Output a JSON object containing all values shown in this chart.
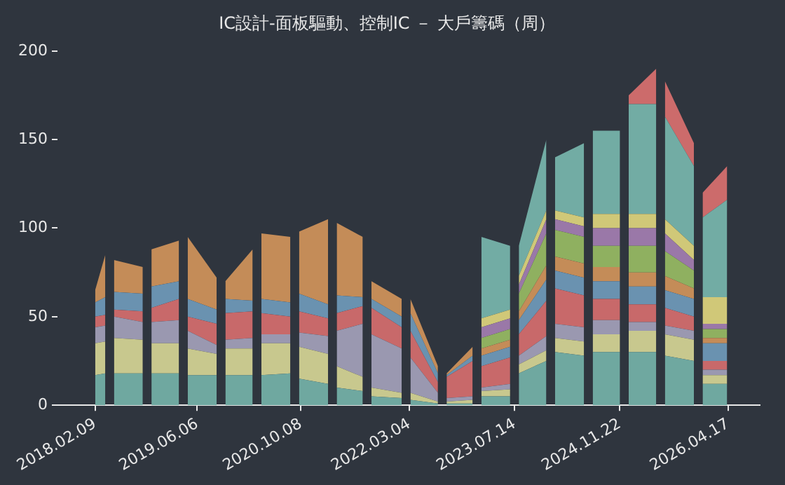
{
  "chart_data": {
    "type": "area",
    "title": "IC設計-面板驅動、控制IC － 大戶籌碼（周）",
    "stacked": true,
    "grid": false,
    "legend": false,
    "x": [
      "2018-02-09",
      "2018-03-29",
      "2018-04-18",
      "2018-05-09",
      "2018-09-22",
      "2018-10-13",
      "2018-11-02",
      "2019-03-12",
      "2019-04-02",
      "2019-04-22",
      "2019-09-06",
      "2019-09-26",
      "2019-10-17",
      "2020-02-23",
      "2020-03-15",
      "2020-04-04",
      "2020-08-19",
      "2020-09-09",
      "2020-09-29",
      "2021-02-13",
      "2021-03-05",
      "2021-03-26",
      "2021-07-27",
      "2021-08-16",
      "2021-09-06",
      "2022-01-27",
      "2022-02-16",
      "2022-03-09",
      "2022-07-17",
      "2022-08-06",
      "2022-08-27",
      "2022-12-28",
      "2023-01-17",
      "2023-02-07",
      "2023-06-23",
      "2023-07-14",
      "2023-08-03",
      "2023-12-11",
      "2023-12-31",
      "2024-01-21",
      "2024-06-06",
      "2024-06-26",
      "2024-07-17",
      "2024-11-23",
      "2024-12-14",
      "2025-01-03",
      "2025-05-13",
      "2025-06-02",
      "2025-06-23",
      "2025-11-07",
      "2025-11-27",
      "2025-12-18",
      "2026-04-13"
    ],
    "xlim": [
      "2017-08-15",
      "2026-09-14"
    ],
    "xticks": [
      {
        "value": "2018-02-09",
        "label": "2018.02.09"
      },
      {
        "value": "2019-06-06",
        "label": "2019.06.06"
      },
      {
        "value": "2020-10-08",
        "label": "2020.10.08"
      },
      {
        "value": "2022-03-04",
        "label": "2022.03.04"
      },
      {
        "value": "2023-07-14",
        "label": "2023.07.14"
      },
      {
        "value": "2024-11-22",
        "label": "2024.11.22"
      },
      {
        "value": "2026-04-17",
        "label": "2026.04.17"
      }
    ],
    "ylim": [
      0,
      200
    ],
    "yticks": [
      0,
      50,
      100,
      150,
      200
    ],
    "series": [
      {
        "color": "#6fa8a0",
        "values": [
          17,
          18,
          null,
          18,
          18,
          null,
          18,
          18,
          null,
          17,
          17,
          null,
          17,
          17,
          null,
          17,
          18,
          null,
          15,
          12,
          null,
          10,
          8,
          null,
          5,
          4,
          null,
          3,
          1,
          null,
          1,
          1,
          null,
          5,
          5,
          null,
          18,
          25,
          null,
          30,
          28,
          null,
          30,
          30,
          null,
          30,
          30,
          null,
          28,
          25,
          null,
          12,
          12
        ]
      },
      {
        "color": "#c8c88e",
        "values": [
          18,
          18,
          null,
          20,
          19,
          null,
          17,
          17,
          null,
          15,
          12,
          null,
          15,
          15,
          null,
          18,
          17,
          null,
          18,
          17,
          null,
          12,
          8,
          null,
          5,
          3,
          null,
          4,
          1,
          null,
          1,
          2,
          null,
          3,
          4,
          null,
          5,
          6,
          null,
          8,
          8,
          null,
          10,
          10,
          null,
          12,
          12,
          null,
          12,
          12,
          null,
          5,
          5
        ]
      },
      {
        "color": "#9a98b0",
        "values": [
          9,
          9,
          null,
          12,
          10,
          null,
          12,
          13,
          null,
          10,
          5,
          null,
          5,
          6,
          null,
          5,
          5,
          null,
          8,
          10,
          null,
          20,
          30,
          null,
          30,
          25,
          null,
          20,
          5,
          null,
          2,
          2,
          null,
          2,
          3,
          null,
          5,
          8,
          null,
          8,
          8,
          null,
          8,
          8,
          null,
          5,
          5,
          null,
          5,
          5,
          null,
          3,
          3
        ]
      },
      {
        "color": "#c8696a",
        "values": [
          6,
          6,
          null,
          4,
          6,
          null,
          8,
          12,
          null,
          8,
          12,
          null,
          15,
          15,
          null,
          12,
          10,
          null,
          12,
          10,
          null,
          10,
          10,
          null,
          15,
          12,
          null,
          15,
          6,
          null,
          12,
          20,
          null,
          12,
          15,
          null,
          12,
          20,
          null,
          20,
          18,
          null,
          12,
          12,
          null,
          10,
          10,
          null,
          10,
          8,
          null,
          5,
          5
        ]
      },
      {
        "color": "#6a92b0",
        "values": [
          8,
          10,
          null,
          10,
          10,
          null,
          12,
          10,
          null,
          10,
          8,
          null,
          8,
          6,
          null,
          8,
          8,
          null,
          10,
          8,
          null,
          10,
          5,
          null,
          5,
          6,
          null,
          10,
          5,
          null,
          1,
          3,
          null,
          6,
          6,
          null,
          8,
          12,
          null,
          10,
          10,
          null,
          10,
          10,
          null,
          10,
          10,
          null,
          10,
          10,
          null,
          10,
          10
        ]
      },
      {
        "color": "#c48c58",
        "values": [
          7,
          24,
          null,
          18,
          15,
          null,
          21,
          23,
          null,
          35,
          18,
          null,
          10,
          29,
          null,
          37,
          37,
          null,
          35,
          48,
          null,
          41,
          34,
          null,
          10,
          10,
          null,
          8,
          4,
          null,
          1,
          5,
          null,
          4,
          4,
          null,
          5,
          8,
          null,
          8,
          8,
          null,
          8,
          8,
          null,
          8,
          8,
          null,
          8,
          6,
          null,
          3,
          3
        ]
      },
      {
        "color": "#8fb060",
        "values": [
          null,
          null,
          null,
          null,
          null,
          null,
          null,
          null,
          null,
          null,
          null,
          null,
          null,
          null,
          null,
          null,
          null,
          null,
          null,
          null,
          null,
          null,
          null,
          null,
          null,
          null,
          null,
          null,
          null,
          null,
          null,
          null,
          null,
          6,
          6,
          null,
          10,
          18,
          null,
          15,
          15,
          null,
          12,
          12,
          null,
          15,
          15,
          null,
          14,
          10,
          null,
          5,
          5
        ]
      },
      {
        "color": "#9a78a8",
        "values": [
          null,
          null,
          null,
          null,
          null,
          null,
          null,
          null,
          null,
          null,
          null,
          null,
          null,
          null,
          null,
          null,
          null,
          null,
          null,
          null,
          null,
          null,
          null,
          null,
          null,
          null,
          null,
          null,
          null,
          null,
          null,
          null,
          null,
          6,
          6,
          null,
          5,
          8,
          null,
          6,
          6,
          null,
          10,
          10,
          null,
          10,
          10,
          null,
          10,
          6,
          null,
          3,
          3
        ]
      },
      {
        "color": "#d0c878",
        "values": [
          null,
          null,
          null,
          null,
          null,
          null,
          null,
          null,
          null,
          null,
          null,
          null,
          null,
          null,
          null,
          null,
          null,
          null,
          null,
          null,
          null,
          null,
          null,
          null,
          null,
          null,
          null,
          null,
          null,
          null,
          null,
          null,
          null,
          5,
          5,
          null,
          5,
          5,
          null,
          5,
          5,
          null,
          8,
          8,
          null,
          8,
          8,
          null,
          8,
          8,
          null,
          15,
          15
        ]
      },
      {
        "color": "#72aca4",
        "values": [
          null,
          null,
          null,
          null,
          null,
          null,
          null,
          null,
          null,
          null,
          null,
          null,
          null,
          null,
          null,
          null,
          null,
          null,
          null,
          null,
          null,
          null,
          null,
          null,
          null,
          null,
          null,
          null,
          null,
          null,
          null,
          null,
          null,
          46,
          36,
          null,
          17,
          40,
          null,
          30,
          42,
          null,
          47,
          47,
          null,
          62,
          62,
          null,
          58,
          45,
          null,
          45,
          55
        ]
      },
      {
        "color": "#cc6b6b",
        "values": [
          null,
          null,
          null,
          null,
          null,
          null,
          null,
          null,
          null,
          null,
          null,
          null,
          null,
          null,
          null,
          null,
          null,
          null,
          null,
          null,
          null,
          null,
          null,
          null,
          null,
          null,
          null,
          null,
          null,
          null,
          null,
          null,
          null,
          null,
          null,
          null,
          null,
          null,
          null,
          null,
          null,
          null,
          null,
          null,
          null,
          5,
          20,
          null,
          20,
          13,
          null,
          14,
          19
        ]
      }
    ]
  }
}
